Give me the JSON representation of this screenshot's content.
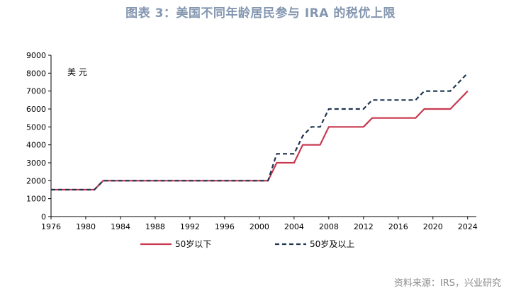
{
  "title": "图表 3：美国不同年龄居民参与 IRA 的税优上限",
  "source": "资料来源：IRS，兴业研究",
  "colors": {
    "title": "#8497b0",
    "under50": "#c8384f",
    "over50": "#1f3552"
  },
  "chart_data": {
    "type": "line",
    "unit_label": "美元",
    "xlim": [
      1976,
      2025
    ],
    "ylim": [
      0,
      9000
    ],
    "x_ticks": [
      "1976",
      "1980",
      "1984",
      "1988",
      "1992",
      "1996",
      "2000",
      "2004",
      "2008",
      "2012",
      "2016",
      "2020",
      "2024"
    ],
    "y_ticks": [
      "0",
      "1000",
      "2000",
      "3000",
      "4000",
      "5000",
      "6000",
      "7000",
      "8000",
      "9000"
    ],
    "grid": false,
    "legend_position": "bottom",
    "series": [
      {
        "name": "50岁以下",
        "color": "#c8384f",
        "style": "solid",
        "x": [
          1976,
          1981,
          1982,
          2001,
          2002,
          2004,
          2005,
          2007,
          2008,
          2012,
          2013,
          2018,
          2019,
          2022,
          2024
        ],
        "values": [
          1500,
          1500,
          2000,
          2000,
          3000,
          3000,
          4000,
          4000,
          5000,
          5000,
          5500,
          5500,
          6000,
          6000,
          7000
        ]
      },
      {
        "name": "50岁及以上",
        "color": "#1f3552",
        "style": "dashed",
        "x": [
          1976,
          1981,
          1982,
          2001,
          2002,
          2004,
          2005,
          2006,
          2007,
          2008,
          2012,
          2013,
          2018,
          2019,
          2022,
          2024
        ],
        "values": [
          1500,
          1500,
          2000,
          2000,
          3500,
          3500,
          4500,
          5000,
          5000,
          6000,
          6000,
          6500,
          6500,
          7000,
          7000,
          8000
        ]
      }
    ]
  }
}
